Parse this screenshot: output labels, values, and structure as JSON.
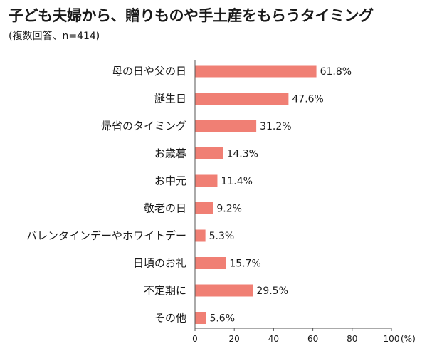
{
  "chart_data": {
    "type": "bar",
    "orientation": "horizontal",
    "title": "子ども夫婦から、贈りものや手土産をもらうタイミング",
    "subtitle": "(複数回答、n=414)",
    "categories": [
      "母の日や父の日",
      "誕生日",
      "帰省のタイミング",
      "お歳暮",
      "お中元",
      "敬老の日",
      "バレンタインデーやホワイトデー",
      "日頃のお礼",
      "不定期に",
      "その他"
    ],
    "values": [
      61.8,
      47.6,
      31.2,
      14.3,
      11.4,
      9.2,
      5.3,
      15.7,
      29.5,
      5.6
    ],
    "value_labels": [
      "61.8%",
      "47.6%",
      "31.2%",
      "14.3%",
      "11.4%",
      "9.2%",
      "5.3%",
      "15.7%",
      "29.5%",
      "5.6%"
    ],
    "xlim": [
      0,
      100
    ],
    "xticks": [
      0,
      20,
      40,
      60,
      80,
      100
    ],
    "xtick_labels": [
      "0",
      "20",
      "40",
      "60",
      "80",
      "100"
    ],
    "xunit": "(%)",
    "bar_color": "#f07f74",
    "grid": false,
    "legend": "none"
  }
}
